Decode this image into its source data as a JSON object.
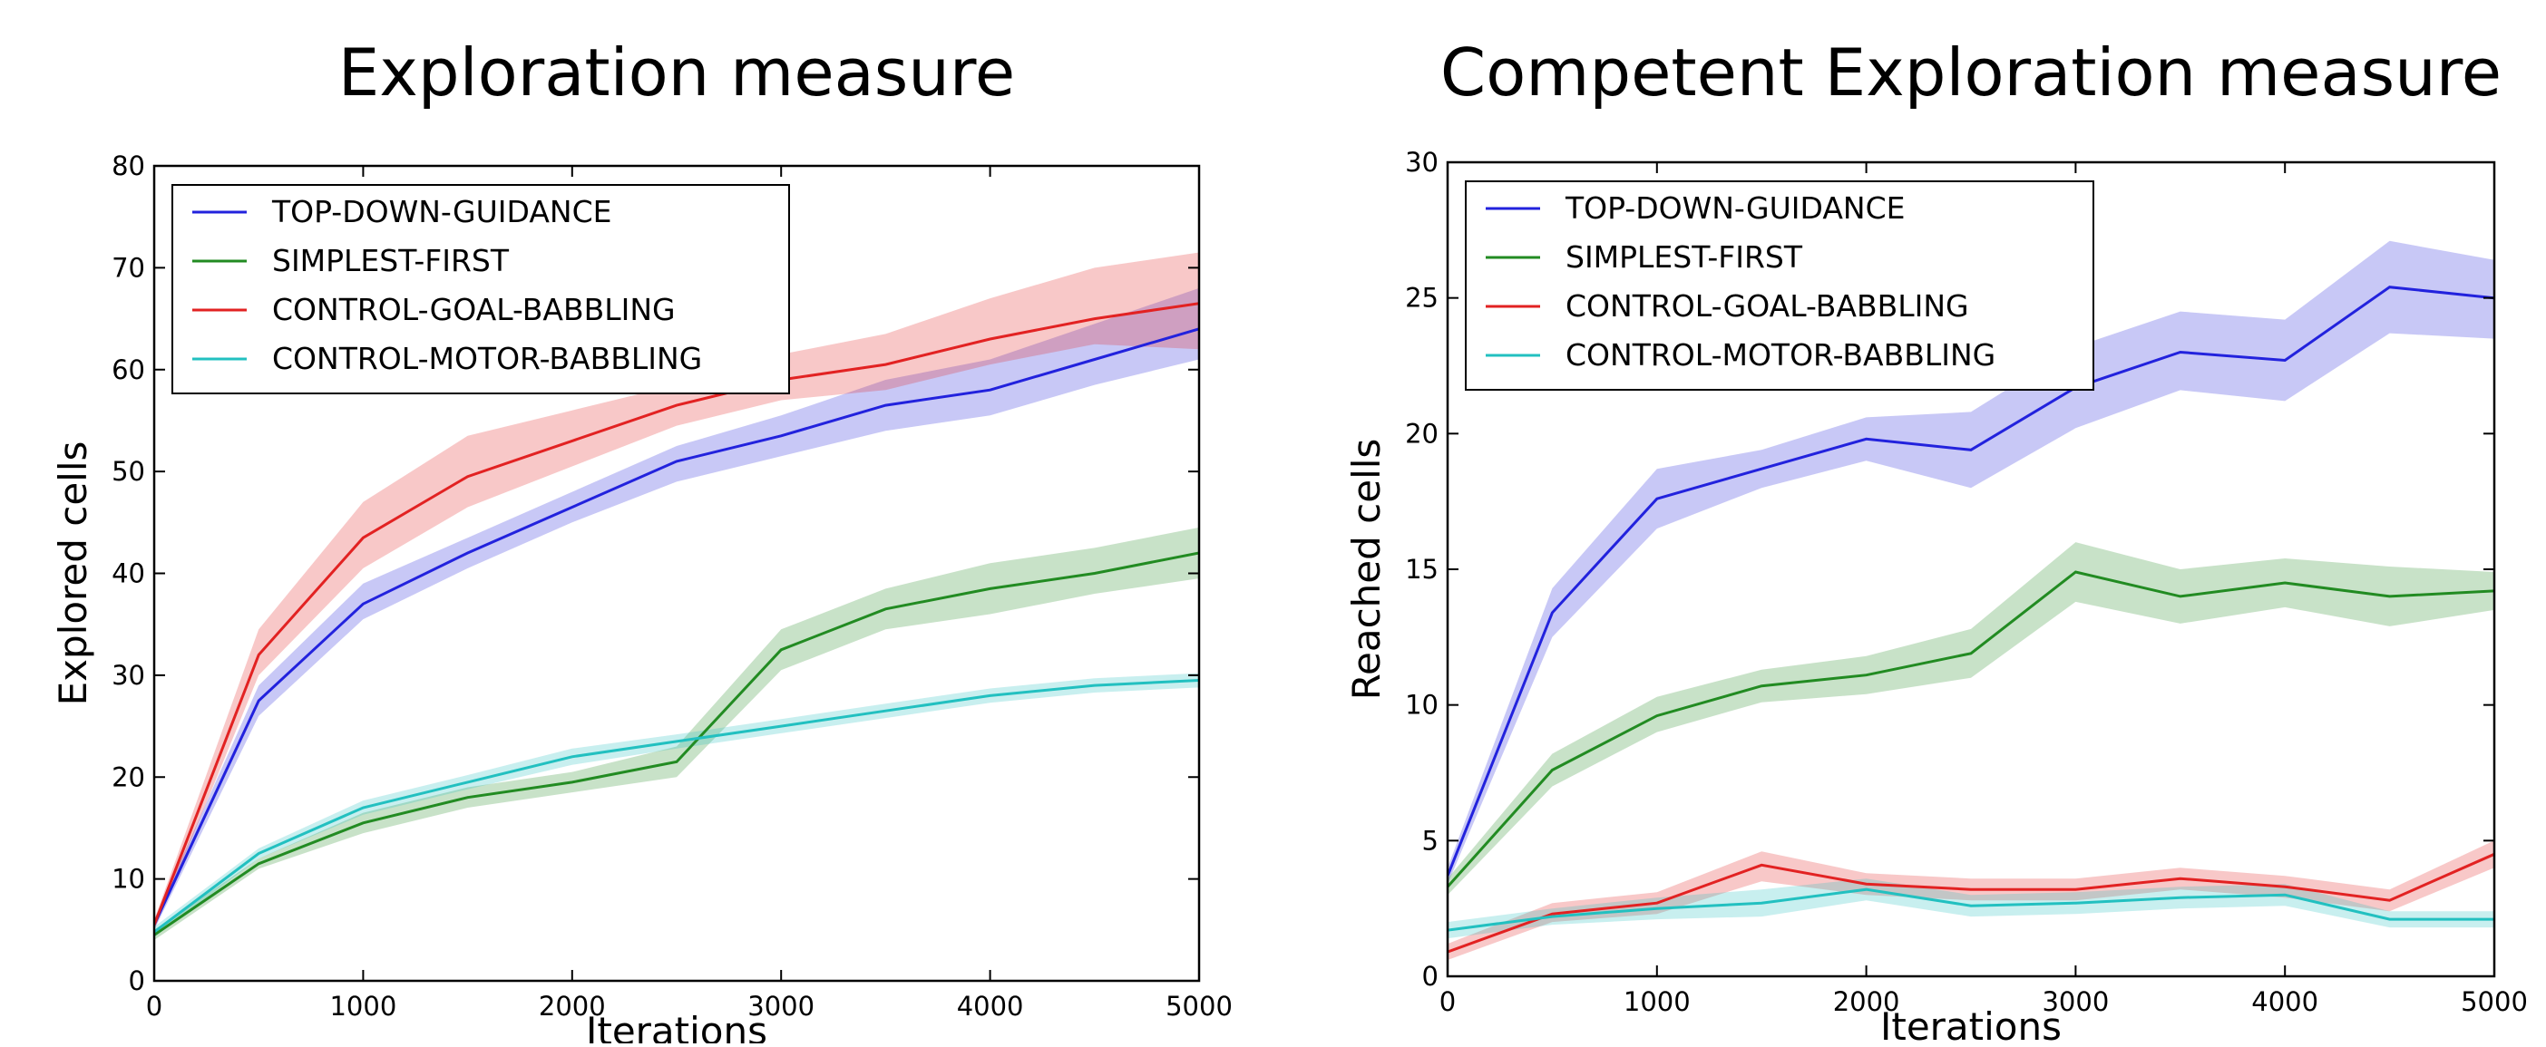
{
  "chart_data": [
    {
      "type": "line",
      "title": "Exploration measure",
      "xlabel": "Iterations",
      "ylabel": "Explored cells",
      "xlim": [
        0,
        5000
      ],
      "ylim": [
        0,
        80
      ],
      "xticks": [
        0,
        1000,
        2000,
        3000,
        4000,
        5000
      ],
      "yticks": [
        0,
        10,
        20,
        30,
        40,
        50,
        60,
        70,
        80
      ],
      "legend_position": "top-left",
      "grid": false,
      "x": [
        0,
        500,
        1000,
        1500,
        2000,
        2500,
        3000,
        3500,
        4000,
        4500,
        5000
      ],
      "series": [
        {
          "name": "TOP-DOWN-GUIDANCE",
          "color": "#2222dd",
          "values": [
            5.5,
            27.5,
            37.0,
            42.0,
            46.5,
            51.0,
            53.5,
            56.5,
            58.0,
            61.0,
            64.0
          ],
          "lower": [
            5.0,
            26.0,
            35.5,
            40.5,
            45.0,
            49.0,
            51.5,
            54.0,
            55.5,
            58.5,
            61.0
          ],
          "upper": [
            6.0,
            29.0,
            39.0,
            43.5,
            48.0,
            52.5,
            55.5,
            59.0,
            61.0,
            64.5,
            68.0
          ]
        },
        {
          "name": "SIMPLEST-FIRST",
          "color": "#228b22",
          "values": [
            4.5,
            11.5,
            15.5,
            18.0,
            19.5,
            21.5,
            32.5,
            36.5,
            38.5,
            40.0,
            42.0
          ],
          "lower": [
            4.0,
            11.0,
            14.5,
            17.0,
            18.5,
            20.0,
            30.5,
            34.5,
            36.0,
            38.0,
            39.5
          ],
          "upper": [
            5.0,
            12.0,
            16.5,
            19.0,
            20.5,
            23.0,
            34.5,
            38.5,
            41.0,
            42.5,
            44.5
          ]
        },
        {
          "name": "CONTROL-GOAL-BABBLING",
          "color": "#e22222",
          "values": [
            5.5,
            32.0,
            43.5,
            49.5,
            53.0,
            56.5,
            59.0,
            60.5,
            63.0,
            65.0,
            66.5
          ],
          "lower": [
            5.0,
            30.0,
            40.5,
            46.5,
            50.5,
            54.5,
            57.0,
            58.0,
            60.5,
            62.5,
            62.0
          ],
          "upper": [
            6.0,
            34.5,
            47.0,
            53.5,
            56.0,
            58.5,
            61.5,
            63.5,
            67.0,
            70.0,
            71.5
          ]
        },
        {
          "name": "CONTROL-MOTOR-BABBLING",
          "color": "#22c0c0",
          "values": [
            4.8,
            12.5,
            17.0,
            19.5,
            22.0,
            23.5,
            25.0,
            26.5,
            28.0,
            29.0,
            29.5
          ],
          "lower": [
            4.3,
            12.0,
            16.3,
            18.8,
            21.2,
            22.8,
            24.3,
            25.8,
            27.3,
            28.3,
            28.8
          ],
          "upper": [
            5.3,
            13.0,
            17.7,
            20.2,
            22.8,
            24.2,
            25.7,
            27.2,
            28.7,
            29.7,
            30.2
          ]
        }
      ]
    },
    {
      "type": "line",
      "title": "Competent Exploration measure",
      "xlabel": "Iterations",
      "ylabel": "Reached cells",
      "xlim": [
        0,
        5000
      ],
      "ylim": [
        0,
        30
      ],
      "xticks": [
        0,
        1000,
        2000,
        3000,
        4000,
        5000
      ],
      "yticks": [
        0,
        5,
        10,
        15,
        20,
        25,
        30
      ],
      "legend_position": "top-left",
      "grid": false,
      "x": [
        0,
        500,
        1000,
        1500,
        2000,
        2500,
        3000,
        3500,
        4000,
        4500,
        5000
      ],
      "series": [
        {
          "name": "TOP-DOWN-GUIDANCE",
          "color": "#2222dd",
          "values": [
            3.7,
            13.4,
            17.6,
            18.7,
            19.8,
            19.4,
            21.7,
            23.0,
            22.7,
            25.4,
            25.0
          ],
          "lower": [
            3.4,
            12.5,
            16.5,
            18.0,
            19.0,
            18.0,
            20.2,
            21.6,
            21.2,
            23.7,
            23.5
          ],
          "upper": [
            4.0,
            14.3,
            18.7,
            19.4,
            20.6,
            20.8,
            23.2,
            24.5,
            24.2,
            27.1,
            26.4
          ]
        },
        {
          "name": "SIMPLEST-FIRST",
          "color": "#228b22",
          "values": [
            3.3,
            7.6,
            9.6,
            10.7,
            11.1,
            11.9,
            14.9,
            14.0,
            14.5,
            14.0,
            14.2
          ],
          "lower": [
            3.0,
            7.0,
            9.0,
            10.1,
            10.4,
            11.0,
            13.8,
            13.0,
            13.6,
            12.9,
            13.5
          ],
          "upper": [
            3.6,
            8.2,
            10.3,
            11.3,
            11.8,
            12.8,
            16.0,
            15.0,
            15.4,
            15.1,
            14.9
          ]
        },
        {
          "name": "CONTROL-GOAL-BABBLING",
          "color": "#e22222",
          "values": [
            0.9,
            2.3,
            2.7,
            4.1,
            3.4,
            3.2,
            3.2,
            3.6,
            3.3,
            2.8,
            4.5
          ],
          "lower": [
            0.6,
            2.0,
            2.3,
            3.5,
            3.0,
            2.8,
            2.8,
            3.2,
            2.9,
            2.4,
            4.0
          ],
          "upper": [
            1.2,
            2.7,
            3.1,
            4.6,
            3.8,
            3.6,
            3.6,
            4.0,
            3.7,
            3.2,
            5.0
          ]
        },
        {
          "name": "CONTROL-MOTOR-BABBLING",
          "color": "#22c0c0",
          "values": [
            1.7,
            2.2,
            2.5,
            2.7,
            3.2,
            2.6,
            2.7,
            2.9,
            3.0,
            2.1,
            2.1
          ],
          "lower": [
            1.4,
            1.9,
            2.1,
            2.2,
            2.8,
            2.2,
            2.3,
            2.5,
            2.6,
            1.8,
            1.8
          ],
          "upper": [
            2.0,
            2.5,
            2.9,
            3.2,
            3.6,
            3.0,
            3.1,
            3.3,
            3.4,
            2.4,
            2.4
          ]
        }
      ]
    }
  ]
}
